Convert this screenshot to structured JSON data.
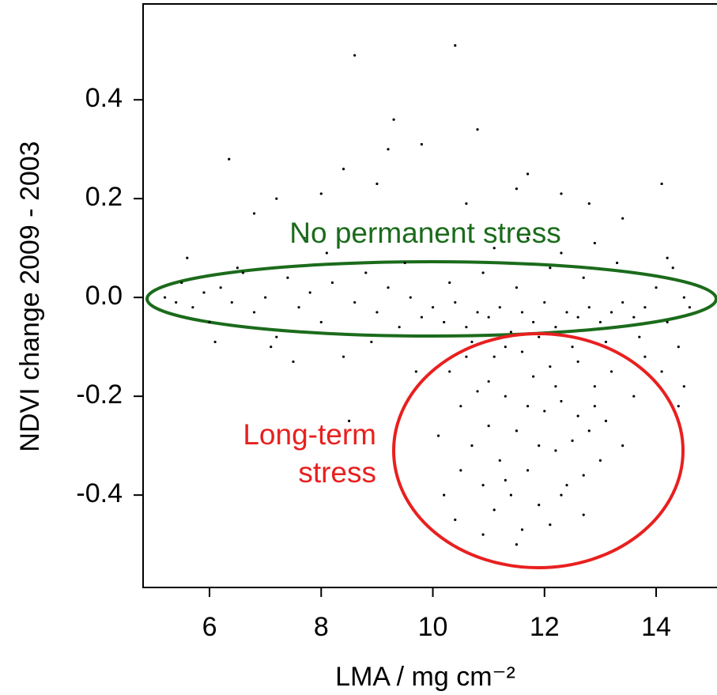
{
  "chart_data": {
    "type": "scatter",
    "x_label": "LMA / mg cm⁻²",
    "y_label": "NDVI change 2009 - 2003",
    "annotations": [
      {
        "lines": [
          "No permanent stress"
        ],
        "color": "#1b6b1b"
      },
      {
        "lines": [
          "Long-term",
          "stress"
        ],
        "color": "#e8201f"
      }
    ],
    "color": "#000000",
    "xlim": [
      4.81,
      15.09
    ],
    "ylim": [
      -0.587,
      0.594
    ],
    "xticks": [
      6,
      8,
      10,
      12,
      14
    ],
    "yticks": [
      0.4,
      0.2,
      {
        "value": 0,
        "label": "0.0"
      },
      -0.2,
      -0.4
    ],
    "x": [
      8.6,
      10.4,
      9.3,
      10.8,
      6.35,
      9.2,
      9.8,
      8.4,
      11.7,
      14.1,
      9.0,
      7.2,
      8.0,
      11.5,
      12.3,
      10.6,
      6.8,
      13.4,
      12.8,
      7.7,
      5.2,
      5.4,
      5.5,
      5.7,
      5.9,
      6.0,
      6.2,
      6.4,
      6.6,
      6.8,
      7.0,
      7.2,
      7.4,
      7.6,
      7.8,
      8.0,
      8.2,
      8.4,
      8.6,
      8.8,
      9.0,
      9.2,
      9.4,
      9.6,
      9.8,
      5.6,
      6.1,
      7.5,
      8.1,
      8.9,
      9.5,
      8.5,
      9.7,
      7.1,
      6.5,
      10.0,
      10.2,
      10.4,
      10.6,
      10.8,
      11.0,
      11.2,
      11.4,
      11.6,
      11.8,
      12.0,
      12.2,
      12.4,
      12.6,
      12.8,
      13.0,
      13.2,
      13.4,
      13.6,
      13.8,
      10.3,
      10.9,
      11.5,
      12.1,
      12.7,
      13.3,
      10.7,
      11.3,
      11.9,
      12.5,
      13.1,
      13.7,
      11.1,
      11.7,
      12.3,
      12.9,
      10.3,
      10.5,
      10.7,
      10.9,
      11.1,
      11.3,
      11.5,
      11.7,
      11.9,
      12.1,
      12.3,
      12.5,
      12.7,
      12.9,
      13.1,
      10.4,
      10.6,
      10.8,
      11.0,
      11.2,
      11.4,
      11.6,
      11.8,
      12.0,
      12.2,
      12.4,
      12.6,
      12.8,
      13.0,
      13.2,
      10.1,
      10.9,
      11.5,
      12.1,
      12.7,
      11.3,
      11.9,
      12.3,
      11.1,
      11.7,
      10.5,
      12.9,
      13.4,
      13.6,
      13.8,
      10.2,
      11.0,
      11.6,
      12.2,
      12.6,
      14.0,
      14.2,
      14.3,
      14.4,
      14.5,
      14.6,
      14.1,
      14.4,
      14.2,
      14.5
    ],
    "y": [
      0.49,
      0.51,
      0.36,
      0.34,
      0.28,
      0.3,
      0.31,
      0.26,
      0.25,
      0.23,
      0.23,
      0.2,
      0.21,
      0.22,
      0.21,
      0.19,
      0.17,
      0.16,
      0.19,
      0.12,
      0.0,
      -0.01,
      0.03,
      -0.02,
      0.01,
      -0.05,
      0.02,
      -0.01,
      0.05,
      -0.03,
      0.0,
      -0.08,
      0.04,
      -0.02,
      0.01,
      -0.05,
      0.03,
      -0.12,
      -0.01,
      0.05,
      -0.03,
      0.02,
      -0.06,
      0.0,
      -0.04,
      0.08,
      -0.09,
      -0.13,
      0.09,
      -0.09,
      0.07,
      -0.25,
      -0.15,
      -0.1,
      0.06,
      -0.02,
      -0.05,
      -0.01,
      -0.06,
      -0.03,
      -0.04,
      -0.02,
      -0.07,
      -0.03,
      -0.05,
      -0.01,
      -0.06,
      -0.03,
      -0.04,
      -0.02,
      -0.05,
      -0.03,
      -0.01,
      -0.04,
      -0.02,
      0.03,
      0.05,
      0.02,
      0.06,
      0.04,
      0.07,
      -0.09,
      -0.1,
      -0.08,
      -0.1,
      -0.09,
      -0.08,
      0.1,
      0.12,
      0.09,
      0.11,
      -0.15,
      -0.22,
      -0.3,
      -0.38,
      -0.12,
      -0.2,
      -0.27,
      -0.35,
      -0.42,
      -0.14,
      -0.21,
      -0.29,
      -0.36,
      -0.18,
      -0.25,
      -0.45,
      -0.12,
      -0.19,
      -0.26,
      -0.33,
      -0.4,
      -0.47,
      -0.16,
      -0.23,
      -0.31,
      -0.38,
      -0.13,
      -0.27,
      -0.33,
      -0.15,
      -0.28,
      -0.48,
      -0.5,
      -0.46,
      -0.44,
      -0.37,
      -0.3,
      -0.4,
      -0.43,
      -0.22,
      -0.35,
      -0.22,
      -0.3,
      -0.2,
      -0.12,
      -0.4,
      -0.17,
      -0.11,
      -0.18,
      -0.24,
      0.02,
      -0.05,
      0.06,
      -0.1,
      0.0,
      -0.02,
      -0.15,
      -0.22,
      0.08,
      -0.18
    ]
  }
}
